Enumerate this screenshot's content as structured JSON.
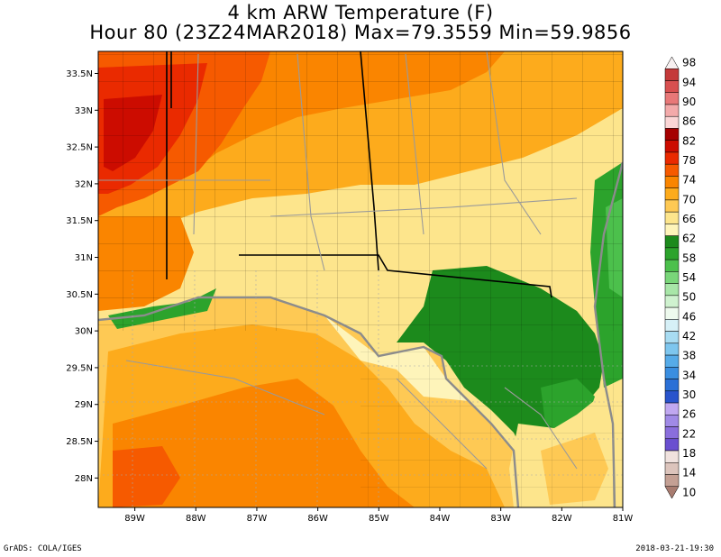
{
  "title": {
    "line1": "4 km ARW Temperature (F)",
    "line2": "Hour 80 (23Z24MAR2018) Max=79.3559 Min=59.9856"
  },
  "axes": {
    "lat_labels": [
      "33.5N",
      "33N",
      "32.5N",
      "32N",
      "31.5N",
      "31N",
      "30.5N",
      "30N",
      "29.5N",
      "29N",
      "28.5N",
      "28N"
    ],
    "lat_values": [
      33.5,
      33,
      32.5,
      32,
      31.5,
      31,
      30.5,
      30,
      29.5,
      29,
      28.5,
      28
    ],
    "lon_labels": [
      "89W",
      "88W",
      "87W",
      "86W",
      "85W",
      "84W",
      "83W",
      "82W",
      "81W"
    ],
    "lon_values": [
      -89,
      -88,
      -87,
      -86,
      -85,
      -84,
      -83,
      -82,
      -81
    ],
    "lon_range": [
      -89.6,
      -81.0
    ],
    "lat_range": [
      27.6,
      33.8
    ]
  },
  "colorbar": {
    "labels": [
      "98",
      "94",
      "90",
      "86",
      "82",
      "78",
      "74",
      "70",
      "66",
      "62",
      "58",
      "54",
      "50",
      "46",
      "42",
      "38",
      "34",
      "30",
      "26",
      "22",
      "18",
      "14",
      "10"
    ],
    "colors": [
      "#f7f0f0",
      "#c43a3a",
      "#d85050",
      "#e87878",
      "#f3aaaa",
      "#fbd6d6",
      "#a50000",
      "#cc0c00",
      "#ea2a00",
      "#f65a00",
      "#fa8500",
      "#fdab1c",
      "#fec954",
      "#fde58c",
      "#fef4ba",
      "#1c8a1c",
      "#2ca32c",
      "#4cc04c",
      "#79d679",
      "#a8e6a8",
      "#cff2cf",
      "#eefaee",
      "#d6f0f7",
      "#a8dcf2",
      "#7ec6ee",
      "#56abe8",
      "#3a8ee0",
      "#2b70d6",
      "#2954cc",
      "#c0a8f0",
      "#a08ae6",
      "#8a6edc",
      "#6a4fd0",
      "#f0e2de",
      "#dcc4bc",
      "#c4a094",
      "#a87c70"
    ]
  },
  "footer": {
    "credit": "GrADS: COLA/IGES",
    "timestamp": "2018-03-21-19:30"
  }
}
